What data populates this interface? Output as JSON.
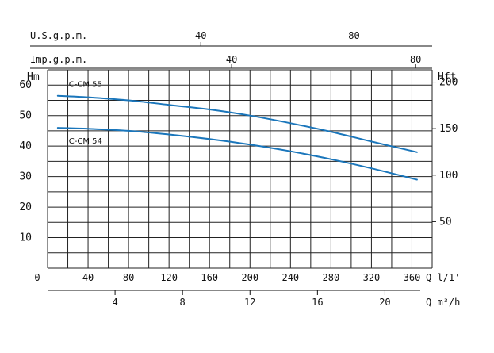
{
  "chart_data": {
    "type": "line",
    "grid": true,
    "x": {
      "label": "Q l/1'",
      "range": [
        0,
        380
      ],
      "grid_step": 20,
      "ticks": [
        0,
        40,
        80,
        120,
        160,
        200,
        240,
        280,
        320,
        360
      ],
      "tick_labels": [
        "0",
        "40",
        "80",
        "120",
        "160",
        "200",
        "240",
        "280",
        "320",
        "360"
      ]
    },
    "y": {
      "label": "Hm",
      "range": [
        0,
        65
      ],
      "grid_step": 5,
      "ticks": [
        10,
        20,
        30,
        40,
        50,
        60
      ],
      "tick_labels": [
        "10",
        "20",
        "30",
        "40",
        "50",
        "60"
      ]
    },
    "y_secondary": {
      "label": "Hft",
      "ticks": [
        50,
        100,
        150,
        200
      ],
      "tick_labels": [
        "50",
        "100",
        "150",
        "200"
      ]
    },
    "x_secondary": [
      {
        "label": "U.S.g.p.m.",
        "ticks": [
          40,
          80
        ],
        "tick_labels": [
          "40",
          "80"
        ]
      },
      {
        "label": "Imp.g.p.m.",
        "ticks": [
          40,
          80
        ],
        "tick_labels": [
          "40",
          "80"
        ]
      },
      {
        "label": "Q m³/h",
        "ticks": [
          4,
          8,
          12,
          16,
          20
        ],
        "tick_labels": [
          "4",
          "8",
          "12",
          "16",
          "20"
        ]
      }
    ],
    "series": [
      {
        "name": "C-CM 55",
        "color": "#1a76bb",
        "x": [
          10,
          40,
          80,
          120,
          160,
          200,
          240,
          280,
          320,
          365
        ],
        "y": [
          56.5,
          56.0,
          55.0,
          53.5,
          52.0,
          50.0,
          47.5,
          44.7,
          41.5,
          38.0
        ]
      },
      {
        "name": "C-CM 54",
        "color": "#1a76bb",
        "x": [
          10,
          40,
          80,
          120,
          160,
          200,
          240,
          280,
          320,
          365
        ],
        "y": [
          46.0,
          45.7,
          45.0,
          43.8,
          42.3,
          40.5,
          38.3,
          35.7,
          32.7,
          29.0
        ]
      }
    ]
  }
}
